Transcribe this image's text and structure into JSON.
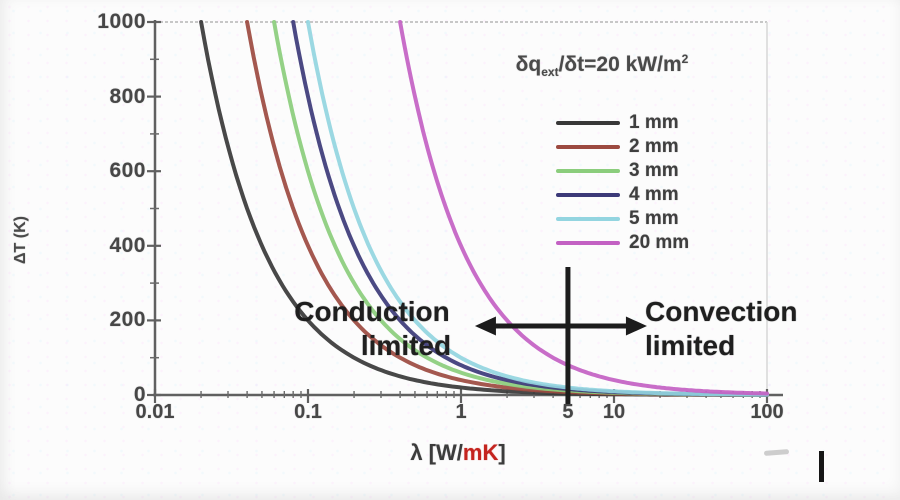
{
  "chart_data": {
    "type": "line",
    "x_scale": "log",
    "xlim": [
      0.01,
      100
    ],
    "ylim": [
      0,
      1000
    ],
    "grid": "off",
    "legend_position": "upper right",
    "ylabel": "ΔT (K)",
    "xlabel": {
      "prefix": "λ [W/",
      "highlight": "mK",
      "suffix": "]"
    },
    "flux_title": {
      "part1": "δq",
      "sub": "ext",
      "part2": "/δt=20 kW/m",
      "sup": "2"
    },
    "q_kW_per_m2": 20,
    "y_ticks": [
      1000,
      800,
      600,
      400,
      200,
      0
    ],
    "y_tick_labels": [
      "1000",
      "800",
      "600",
      "400",
      "200",
      "0"
    ],
    "x_ticks": [
      0.01,
      0.1,
      1,
      5,
      10,
      100
    ],
    "x_tick_labels": [
      "0.01",
      "0.1",
      "1",
      "5",
      "10",
      "100"
    ],
    "series": [
      {
        "name": "1 mm",
        "thickness_mm": 1,
        "color": "#383838",
        "lambda_at_deltaT_1000": 0.02
      },
      {
        "name": "2 mm",
        "thickness_mm": 2,
        "color": "#9c4a40",
        "lambda_at_deltaT_1000": 0.04
      },
      {
        "name": "3 mm",
        "thickness_mm": 3,
        "color": "#8bcd7c",
        "lambda_at_deltaT_1000": 0.06
      },
      {
        "name": "4 mm",
        "thickness_mm": 4,
        "color": "#3c3a78",
        "lambda_at_deltaT_1000": 0.08
      },
      {
        "name": "5 mm",
        "thickness_mm": 5,
        "color": "#93d5e0",
        "lambda_at_deltaT_1000": 0.1
      },
      {
        "name": "20 mm",
        "thickness_mm": 20,
        "color": "#c361c3",
        "lambda_at_deltaT_1000": 0.4
      }
    ],
    "curve_relation": "deltaT_K = q_kW_per_m2 * thickness_mm / lambda",
    "samples": {
      "lambda_W_per_mK": [
        0.02,
        0.04,
        0.06,
        0.08,
        0.1,
        0.2,
        0.4,
        1,
        2,
        5,
        10,
        20,
        50,
        100
      ],
      "deltaT_K_by_series": {
        "1 mm": [
          1000,
          500,
          333,
          250,
          200,
          100,
          50,
          20,
          10,
          4,
          2,
          1,
          0.4,
          0.2
        ],
        "2 mm": [
          1000,
          1000,
          667,
          500,
          400,
          200,
          100,
          40,
          20,
          8,
          4,
          2,
          0.8,
          0.4
        ],
        "3 mm": [
          1000,
          1000,
          1000,
          750,
          600,
          300,
          150,
          60,
          30,
          12,
          6,
          3,
          1.2,
          0.6
        ],
        "4 mm": [
          1000,
          1000,
          1000,
          1000,
          800,
          400,
          200,
          80,
          40,
          16,
          8,
          4,
          1.6,
          0.8
        ],
        "5 mm": [
          1000,
          1000,
          1000,
          1000,
          1000,
          500,
          250,
          100,
          50,
          20,
          10,
          5,
          2,
          1
        ],
        "20 mm": [
          1000,
          1000,
          1000,
          1000,
          1000,
          1000,
          1000,
          400,
          200,
          80,
          40,
          20,
          8,
          4
        ]
      }
    },
    "annotations": {
      "conduction": {
        "line1": "Conduction",
        "line2": "limited"
      },
      "convection": {
        "line1": "Convection",
        "line2": "limited"
      },
      "divider_lambda": 5
    },
    "colors": {
      "axis": "#606060",
      "frame": "#c7c7c7",
      "marker": "#1c1c1c",
      "xlabel_highlight": "#c4241f"
    }
  }
}
